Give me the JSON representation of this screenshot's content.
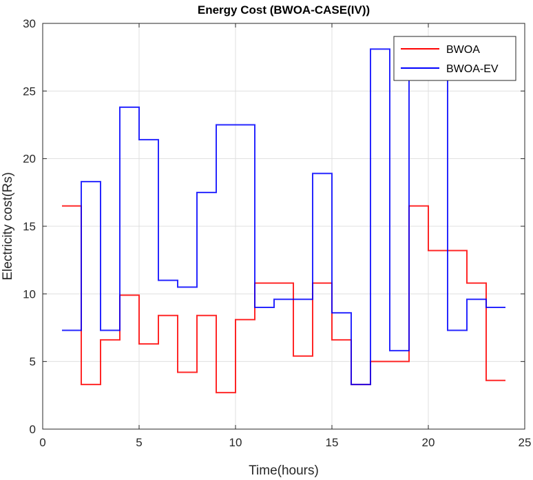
{
  "chart_data": {
    "type": "line",
    "step": true,
    "title": "Energy Cost (BWOA-CASE(IV))",
    "xlabel": "Time(hours)",
    "ylabel": "Electricity cost(Rs)",
    "xlim": [
      0,
      25
    ],
    "ylim": [
      0,
      30
    ],
    "xticks": [
      0,
      5,
      10,
      15,
      20,
      25
    ],
    "yticks": [
      0,
      5,
      10,
      15,
      20,
      25,
      30
    ],
    "grid": true,
    "legend_position": "top-right",
    "x": [
      1,
      2,
      3,
      4,
      5,
      6,
      7,
      8,
      9,
      10,
      11,
      12,
      13,
      14,
      15,
      16,
      17,
      18,
      19,
      20,
      21,
      22,
      23,
      24
    ],
    "series": [
      {
        "name": "BWOA",
        "color": "#ff0000",
        "values": [
          16.5,
          3.3,
          6.6,
          9.9,
          6.3,
          8.4,
          4.2,
          8.4,
          2.7,
          8.1,
          10.8,
          10.8,
          5.4,
          10.8,
          6.6,
          3.3,
          5.0,
          5.0,
          16.5,
          13.2,
          13.2,
          10.8,
          3.6,
          3.6
        ]
      },
      {
        "name": "BWOA-EV",
        "color": "#0000ff",
        "values": [
          7.3,
          18.3,
          7.3,
          23.8,
          21.4,
          11.0,
          10.5,
          17.5,
          22.5,
          22.5,
          9.0,
          9.6,
          9.6,
          18.9,
          8.6,
          3.3,
          28.1,
          5.8,
          27.0,
          27.0,
          7.3,
          9.6,
          9.0,
          9.0
        ]
      }
    ]
  }
}
